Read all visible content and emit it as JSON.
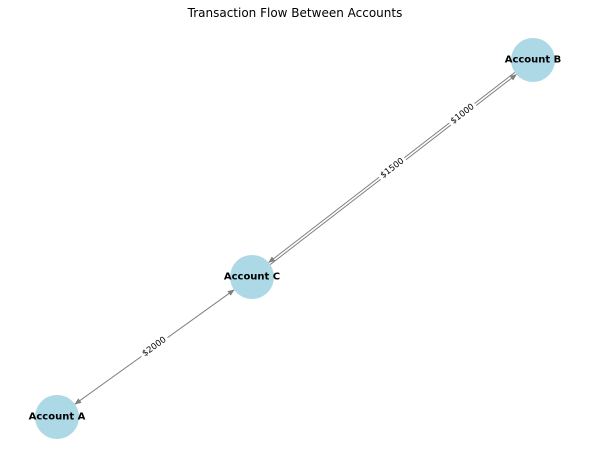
{
  "title": "Transaction Flow Between Accounts",
  "colors": {
    "node_fill": "#add8e6",
    "edge": "#808080",
    "label_bg": "#ffffff"
  },
  "nodes": [
    {
      "id": "A",
      "label": "Account A"
    },
    {
      "id": "B",
      "label": "Account B"
    },
    {
      "id": "C",
      "label": "Account C"
    }
  ],
  "edges": [
    {
      "from": "A",
      "to": "C",
      "label": "$2000"
    },
    {
      "from": "C",
      "to": "B",
      "label": "$1500"
    },
    {
      "from": "B",
      "to": "C",
      "label": "$1000"
    }
  ]
}
